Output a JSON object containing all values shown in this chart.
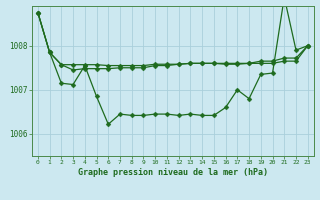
{
  "title": "Graphe pression niveau de la mer (hPa)",
  "background_color": "#cce8f0",
  "plot_background": "#cce8f0",
  "grid_color": "#aacfdb",
  "line_color": "#1e6b1e",
  "x_ticks": [
    0,
    1,
    2,
    3,
    4,
    5,
    6,
    7,
    8,
    9,
    10,
    11,
    12,
    13,
    14,
    15,
    16,
    17,
    18,
    19,
    20,
    21,
    22,
    23
  ],
  "ylim": [
    1005.5,
    1008.9
  ],
  "yticks": [
    1006,
    1007,
    1008
  ],
  "series_bottom": [
    1008.75,
    1007.85,
    1007.15,
    1007.12,
    1007.55,
    1006.85,
    1006.22,
    1006.45,
    1006.42,
    1006.42,
    1006.45,
    1006.45,
    1006.42,
    1006.45,
    1006.42,
    1006.42,
    1006.6,
    1007.0,
    1006.8,
    1007.35,
    1007.38,
    1009.1,
    1007.9,
    1008.0
  ],
  "series_mid1": [
    1008.75,
    1007.85,
    1007.57,
    1007.57,
    1007.57,
    1007.57,
    1007.55,
    1007.55,
    1007.55,
    1007.55,
    1007.58,
    1007.58,
    1007.58,
    1007.6,
    1007.6,
    1007.6,
    1007.6,
    1007.6,
    1007.6,
    1007.65,
    1007.65,
    1007.72,
    1007.72,
    1008.0
  ],
  "series_mid2": [
    1008.75,
    1007.85,
    1007.57,
    1007.45,
    1007.48,
    1007.48,
    1007.48,
    1007.5,
    1007.5,
    1007.5,
    1007.55,
    1007.55,
    1007.58,
    1007.6,
    1007.6,
    1007.6,
    1007.58,
    1007.58,
    1007.6,
    1007.6,
    1007.6,
    1007.65,
    1007.65,
    1008.0
  ]
}
